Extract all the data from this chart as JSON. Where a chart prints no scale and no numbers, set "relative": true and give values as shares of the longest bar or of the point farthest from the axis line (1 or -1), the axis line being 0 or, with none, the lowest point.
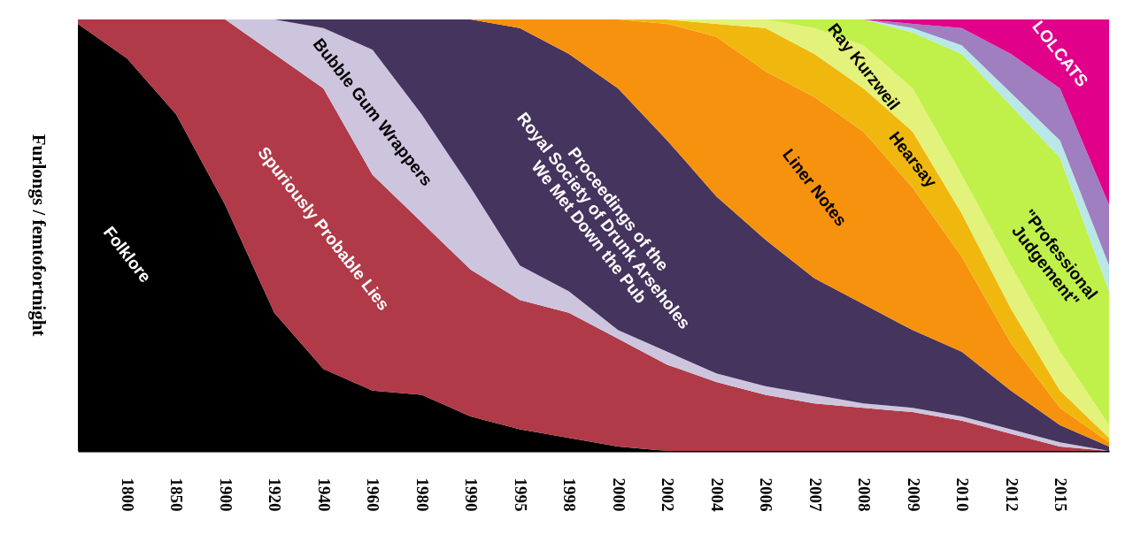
{
  "chart_data": {
    "type": "area",
    "stacked": true,
    "relative": true,
    "ylabel": "Furlongs / femtofortnight",
    "categories": [
      null,
      "1800",
      "1850",
      "1900",
      "1920",
      "1940",
      "1960",
      "1980",
      "1990",
      "1995",
      "1998",
      "2000",
      "2002",
      "2004",
      "2006",
      "2007",
      "2008",
      "2009",
      "2010",
      "2012",
      "2015",
      null
    ],
    "series": [
      {
        "name": "Folklore",
        "color": "#000000",
        "values": [
          0.99,
          0.91,
          0.78,
          0.57,
          0.32,
          0.19,
          0.14,
          0.13,
          0.08,
          0.05,
          0.03,
          0.01,
          0,
          null,
          null,
          null,
          null,
          null,
          null,
          null,
          null,
          null
        ]
      },
      {
        "name": "Spuriously Probable Lies",
        "color": "#b03a48",
        "values": [
          0.01,
          0.09,
          0.22,
          0.43,
          0.6,
          0.65,
          0.5,
          0.4,
          0.34,
          0.3,
          0.29,
          0.25,
          0.2,
          0.16,
          0.13,
          0.11,
          0.1,
          0.09,
          0.07,
          0.04,
          0.01,
          0
        ]
      },
      {
        "name": "Bubble Gum Wrappers",
        "color": "#cdc5de",
        "values": [
          null,
          null,
          null,
          0,
          0.08,
          0.14,
          0.29,
          0.25,
          0.19,
          0.08,
          0.05,
          0.02,
          0.03,
          0.02,
          0.02,
          0.02,
          0.01,
          0.01,
          0.01,
          0.01,
          0.01,
          0
        ]
      },
      {
        "name": "Proceedings of the\nRoyal Society of Drunk Arseholes\nWe Met Down the Pub",
        "color": "#45345e",
        "values": [
          null,
          null,
          null,
          null,
          0,
          0.02,
          0.07,
          0.22,
          0.39,
          0.55,
          0.55,
          0.56,
          0.49,
          0.41,
          0.34,
          0.27,
          0.23,
          0.18,
          0.15,
          0.09,
          0.04,
          0.01
        ]
      },
      {
        "name": "Liner Notes",
        "color": "#f7920f",
        "values": [
          null,
          null,
          null,
          null,
          null,
          null,
          null,
          null,
          0,
          0.02,
          0.08,
          0.16,
          0.27,
          0.37,
          0.39,
          0.42,
          0.4,
          0.33,
          0.22,
          0.11,
          0.04,
          0.01
        ]
      },
      {
        "name": "Hearsay",
        "color": "#f0b80f",
        "values": [
          null,
          null,
          null,
          null,
          null,
          null,
          null,
          null,
          null,
          null,
          null,
          0,
          0.01,
          0.03,
          0.1,
          0.1,
          0.1,
          0.13,
          0.1,
          0.08,
          0.04,
          0.01
        ]
      },
      {
        "name": "Ray Kurzweil",
        "color": "#e3f27a",
        "values": [
          null,
          null,
          null,
          null,
          null,
          null,
          null,
          null,
          null,
          null,
          null,
          null,
          0,
          0.01,
          0.02,
          0.06,
          0.1,
          0.1,
          0.09,
          0.1,
          0.09,
          0.03
        ]
      },
      {
        "name": "\"Professional\nJudgement\"",
        "color": "#c0f04a",
        "values": [
          null,
          null,
          null,
          null,
          null,
          null,
          null,
          null,
          null,
          null,
          null,
          null,
          null,
          null,
          0,
          0.02,
          0.06,
          0.13,
          0.28,
          0.37,
          0.45,
          0.31
        ]
      },
      {
        "color": "#b8e8e8",
        "values": [
          null,
          null,
          null,
          null,
          null,
          null,
          null,
          null,
          null,
          null,
          null,
          null,
          null,
          null,
          null,
          null,
          0,
          0.01,
          0.02,
          0.03,
          0.04,
          0.06
        ]
      },
      {
        "color": "#9f7fc0",
        "values": [
          null,
          null,
          null,
          null,
          null,
          null,
          null,
          null,
          null,
          null,
          null,
          null,
          null,
          null,
          null,
          null,
          0,
          0.01,
          0.04,
          0.09,
          0.12,
          0.14
        ]
      },
      {
        "name": "LOLCATS",
        "color": "#e0008a",
        "values": [
          null,
          null,
          null,
          null,
          null,
          null,
          null,
          null,
          null,
          null,
          null,
          null,
          null,
          null,
          null,
          null,
          0,
          0.01,
          0.02,
          0.08,
          0.16,
          0.43
        ]
      }
    ]
  }
}
